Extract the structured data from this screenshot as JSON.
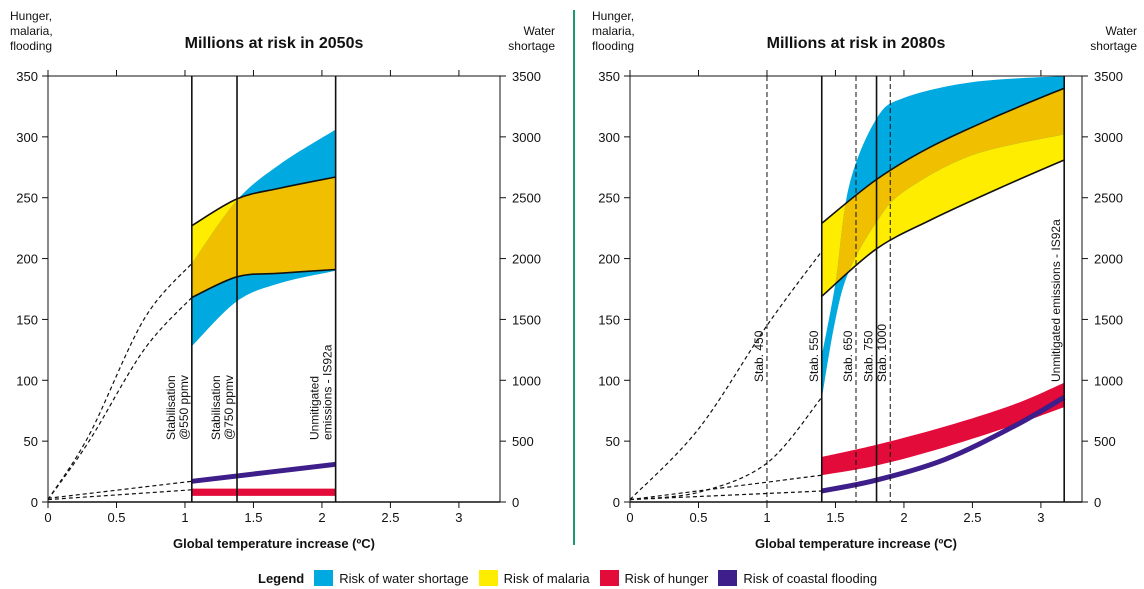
{
  "colors": {
    "water": "#00a9e0",
    "malaria": "#ffed00",
    "overlap": "#f0bf00",
    "hunger": "#e30b3a",
    "flooding": "#3d1e8a",
    "divider": "#1a9a6a"
  },
  "legend": {
    "title": "Legend",
    "items": [
      {
        "label": "Risk of water shortage",
        "color": "#00a9e0"
      },
      {
        "label": "Risk of malaria",
        "color": "#ffed00"
      },
      {
        "label": "Risk of hunger",
        "color": "#e30b3a"
      },
      {
        "label": "Risk of coastal flooding",
        "color": "#3d1e8a"
      }
    ]
  },
  "chart_data": [
    {
      "type": "area",
      "title": "Millions at risk in 2050s",
      "xlabel": "Global temperature increase (ºC)",
      "ylabel_left": [
        "Hunger,",
        "malaria,",
        "flooding"
      ],
      "ylabel_right": [
        "Water",
        "shortage"
      ],
      "xlim": [
        0,
        3.3
      ],
      "ylim_left": [
        0,
        350
      ],
      "ylim_right": [
        0,
        3500
      ],
      "xticks": [
        "0",
        "0.5",
        "1",
        "1.5",
        "2",
        "2.5",
        "3"
      ],
      "yticks_left": [
        "0",
        "50",
        "100",
        "150",
        "200",
        "250",
        "300",
        "350"
      ],
      "yticks_right": [
        "0",
        "500",
        "1000",
        "1500",
        "2000",
        "2500",
        "3000",
        "3500"
      ],
      "scenario_lines": [
        {
          "x": 1.05,
          "label": [
            "Stabilisation",
            "@550 ppmv"
          ],
          "style": "solid"
        },
        {
          "x": 1.38,
          "label": [
            "Stabilisation",
            "@750 ppmv"
          ],
          "style": "solid"
        },
        {
          "x": 2.1,
          "label": [
            "Unmitigated",
            "emissions - IS92a"
          ],
          "style": "solid"
        }
      ],
      "series": [
        {
          "name": "Risk of water shortage",
          "axis": "right",
          "x": [
            1.05,
            1.38,
            1.7,
            2.1
          ],
          "lower": [
            1280,
            1650,
            1800,
            1900
          ],
          "upper": [
            1960,
            2480,
            2780,
            3060
          ]
        },
        {
          "name": "Risk of malaria",
          "axis": "left",
          "x": [
            1.05,
            1.38,
            1.7,
            2.1
          ],
          "lower": [
            168,
            185,
            188,
            191
          ],
          "upper": [
            227,
            249,
            258,
            267
          ]
        },
        {
          "name": "Risk of hunger",
          "axis": "left",
          "x": [
            1.05,
            2.1
          ],
          "lower": [
            5,
            5
          ],
          "upper": [
            11,
            11
          ]
        },
        {
          "name": "Risk of coastal flooding",
          "axis": "left",
          "x": [
            1.05,
            2.1
          ],
          "values": [
            17,
            31
          ]
        }
      ],
      "dashed_extrapolations": [
        {
          "x": [
            0,
            0.3,
            0.7,
            1.05
          ],
          "y": [
            2,
            55,
            150,
            196
          ]
        },
        {
          "x": [
            0,
            0.3,
            0.7,
            1.05
          ],
          "y": [
            2,
            50,
            125,
            168
          ]
        },
        {
          "x": [
            0,
            1.05
          ],
          "y": [
            3,
            17
          ]
        },
        {
          "x": [
            0,
            1.05
          ],
          "y": [
            2,
            10
          ]
        }
      ]
    },
    {
      "type": "area",
      "title": "Millions at risk in 2080s",
      "xlabel": "Global temperature increase (ºC)",
      "ylabel_left": [
        "Hunger,",
        "malaria,",
        "flooding"
      ],
      "ylabel_right": [
        "Water",
        "shortage"
      ],
      "xlim": [
        0,
        3.3
      ],
      "ylim_left": [
        0,
        350
      ],
      "ylim_right": [
        0,
        3500
      ],
      "xticks": [
        "0",
        "0.5",
        "1",
        "1.5",
        "2",
        "2.5",
        "3"
      ],
      "yticks_left": [
        "0",
        "50",
        "100",
        "150",
        "200",
        "250",
        "300",
        "350"
      ],
      "yticks_right": [
        "0",
        "500",
        "1000",
        "1500",
        "2000",
        "2500",
        "3000",
        "3500"
      ],
      "scenario_lines": [
        {
          "x": 1.0,
          "label": [
            "Stab. 450"
          ],
          "style": "dashed"
        },
        {
          "x": 1.4,
          "label": [
            "Stab. 550"
          ],
          "style": "solid"
        },
        {
          "x": 1.65,
          "label": [
            "Stab. 650"
          ],
          "style": "dashed"
        },
        {
          "x": 1.8,
          "label": [
            "Stab. 750"
          ],
          "style": "solid"
        },
        {
          "x": 1.9,
          "label": [
            "Stab. 1000"
          ],
          "style": "dashed"
        },
        {
          "x": 3.17,
          "label": [
            "Unmitigated emissions - IS92a"
          ],
          "style": "solid"
        }
      ],
      "series": [
        {
          "name": "Risk of water shortage",
          "axis": "right",
          "x": [
            1.4,
            1.5,
            1.6,
            1.8,
            2.0,
            2.5,
            3.17
          ],
          "lower": [
            850,
            1500,
            1900,
            2300,
            2550,
            2850,
            3020
          ],
          "upper": [
            1200,
            1800,
            2600,
            3150,
            3320,
            3450,
            3500
          ]
        },
        {
          "name": "Risk of malaria",
          "axis": "left",
          "x": [
            1.4,
            1.8,
            2.2,
            2.7,
            3.17
          ],
          "lower": [
            169,
            208,
            232,
            258,
            281
          ],
          "upper": [
            229,
            265,
            292,
            318,
            340
          ]
        },
        {
          "name": "Risk of hunger",
          "axis": "left",
          "x": [
            1.4,
            1.8,
            2.3,
            2.8,
            3.17
          ],
          "lower": [
            22,
            30,
            45,
            63,
            78
          ],
          "upper": [
            37,
            47,
            62,
            80,
            98
          ]
        },
        {
          "name": "Risk of coastal flooding",
          "axis": "left",
          "x": [
            1.4,
            1.8,
            2.3,
            2.8,
            3.17
          ],
          "values": [
            9,
            18,
            35,
            62,
            86
          ]
        }
      ],
      "dashed_extrapolations": [
        {
          "x": [
            0,
            0.5,
            1.0,
            1.4
          ],
          "y": [
            2,
            60,
            145,
            206
          ]
        },
        {
          "x": [
            0,
            0.5,
            1.0,
            1.4
          ],
          "y": [
            2,
            8,
            32,
            86
          ]
        },
        {
          "x": [
            0,
            1.4
          ],
          "y": [
            2,
            22
          ]
        },
        {
          "x": [
            0,
            1.4
          ],
          "y": [
            2,
            9
          ]
        }
      ]
    }
  ]
}
